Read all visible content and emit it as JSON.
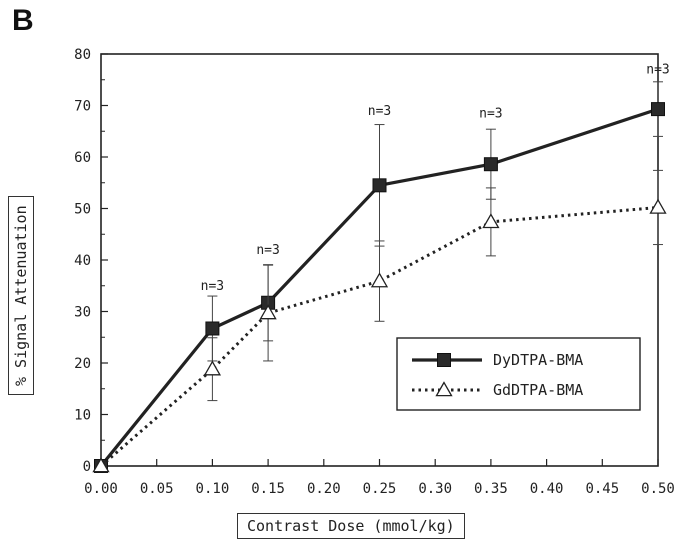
{
  "panel_label": "B",
  "chart_data": {
    "type": "line",
    "xlabel": "Contrast Dose (mmol/kg)",
    "ylabel": "% Signal Attenuation",
    "xlim": [
      0,
      0.5
    ],
    "ylim": [
      0,
      80
    ],
    "x_ticks": [
      "0.00",
      "0.05",
      "0.10",
      "0.15",
      "0.20",
      "0.25",
      "0.30",
      "0.35",
      "0.40",
      "0.45",
      "0.50"
    ],
    "y_ticks": [
      "0",
      "10",
      "20",
      "30",
      "40",
      "50",
      "60",
      "70",
      "80"
    ],
    "series": [
      {
        "name": "DyDTPA-BMA",
        "marker": "filled-square",
        "line": "solid",
        "color": "#222222",
        "points": [
          {
            "x": 0.0,
            "y": 0,
            "err": 0
          },
          {
            "x": 0.1,
            "y": 26.7,
            "err": 6.3
          },
          {
            "x": 0.15,
            "y": 31.7,
            "err": 7.4
          },
          {
            "x": 0.25,
            "y": 54.5,
            "err": 11.8
          },
          {
            "x": 0.35,
            "y": 58.6,
            "err": 6.8
          },
          {
            "x": 0.5,
            "y": 69.3,
            "err": 5.3
          }
        ]
      },
      {
        "name": "GdDTPA-BMA",
        "marker": "open-triangle",
        "line": "dotted",
        "color": "#222222",
        "points": [
          {
            "x": 0.0,
            "y": 0,
            "err": 0
          },
          {
            "x": 0.1,
            "y": 18.8,
            "err": 6.1
          },
          {
            "x": 0.15,
            "y": 29.7,
            "err": 9.3
          },
          {
            "x": 0.25,
            "y": 35.9,
            "err": 7.8
          },
          {
            "x": 0.35,
            "y": 47.4,
            "err": 6.6
          },
          {
            "x": 0.5,
            "y": 50.2,
            "err": 7.2
          }
        ]
      }
    ],
    "annotations": [
      {
        "text": "n=3",
        "x": 0.1,
        "y": 34.2
      },
      {
        "text": "n=3",
        "x": 0.15,
        "y": 41.2
      },
      {
        "text": "n=3",
        "x": 0.25,
        "y": 68.2
      },
      {
        "text": "n=3",
        "x": 0.35,
        "y": 67.7
      },
      {
        "text": "n=3",
        "x": 0.5,
        "y": 76.2
      }
    ],
    "legend_position": "lower-right",
    "grid": false
  }
}
